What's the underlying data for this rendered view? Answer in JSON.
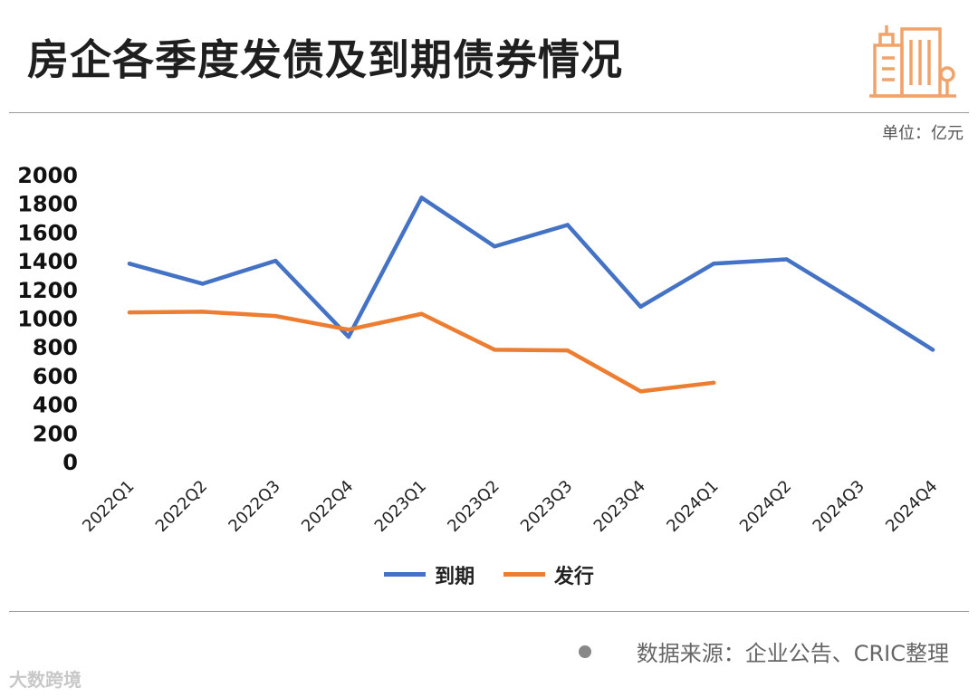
{
  "header": {
    "title": "房企各季度发债及到期债券情况",
    "unit": "单位：亿元"
  },
  "footer": {
    "source": "数据来源：企业公告、CRIC整理",
    "watermark": "大数跨境"
  },
  "colors": {
    "maturity": "#4472c4",
    "issuance": "#ed7d31",
    "logo": "#f0a36b"
  },
  "chart_data": {
    "type": "line",
    "categories": [
      "2022Q1",
      "2022Q2",
      "2022Q3",
      "2022Q4",
      "2023Q1",
      "2023Q2",
      "2023Q3",
      "2023Q4",
      "2024Q1",
      "2024Q2",
      "2024Q3",
      "2024Q4"
    ],
    "series": [
      {
        "name": "到期",
        "values": [
          1380,
          1240,
          1400,
          870,
          1840,
          1500,
          1650,
          1080,
          1380,
          1410,
          1100,
          780
        ]
      },
      {
        "name": "发行",
        "values": [
          1040,
          1045,
          1015,
          920,
          1030,
          780,
          775,
          490,
          550,
          null,
          null,
          null
        ]
      }
    ],
    "ylim": [
      0,
      2000
    ],
    "yticks": [
      "2000",
      "1800",
      "1600",
      "1400",
      "1200",
      "1000",
      "800",
      "600",
      "400",
      "200",
      "0"
    ],
    "grid": false,
    "legend": "bottom"
  }
}
